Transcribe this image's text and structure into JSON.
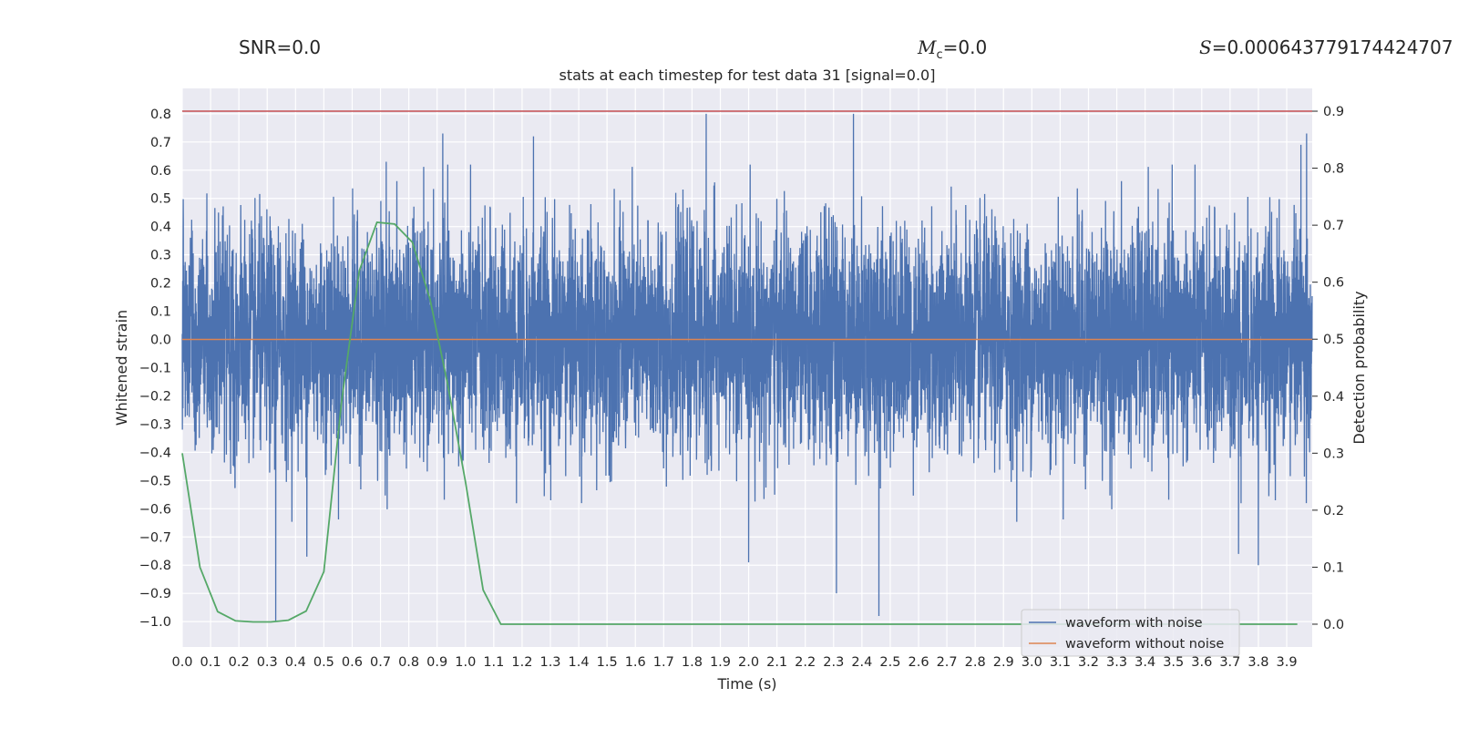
{
  "header": {
    "snr": "SNR=0.0",
    "mc_symbol": "M",
    "mc_sub": "c",
    "mc_value": "=0.0",
    "s_symbol": "S",
    "s_value": "=0.000643779174424707"
  },
  "chart_data": {
    "type": "line",
    "title": "stats at each timestep for test data 31 [signal=0.0]",
    "xlabel": "Time (s)",
    "ylabel": "Whitened strain",
    "ylabel_right": "Detection probability",
    "xlim": [
      0.0,
      3.99
    ],
    "ylim": [
      -1.09,
      0.89
    ],
    "ylim_right": [
      -0.04,
      0.94
    ],
    "x_ticks": [
      "0.0",
      "0.1",
      "0.2",
      "0.3",
      "0.4",
      "0.5",
      "0.6",
      "0.7",
      "0.8",
      "0.9",
      "1.0",
      "1.1",
      "1.2",
      "1.3",
      "1.4",
      "1.5",
      "1.6",
      "1.7",
      "1.8",
      "1.9",
      "2.0",
      "2.1",
      "2.2",
      "2.3",
      "2.4",
      "2.5",
      "2.6",
      "2.7",
      "2.8",
      "2.9",
      "3.0",
      "3.1",
      "3.2",
      "3.3",
      "3.4",
      "3.5",
      "3.6",
      "3.7",
      "3.8",
      "3.9"
    ],
    "y_ticks": [
      "0.8",
      "0.7",
      "0.6",
      "0.5",
      "0.4",
      "0.3",
      "0.2",
      "0.1",
      "0.0",
      "−0.1",
      "−0.2",
      "−0.3",
      "−0.4",
      "−0.5",
      "−0.6",
      "−0.7",
      "−0.8",
      "−0.9",
      "−1.0"
    ],
    "y_ticks_right": [
      "0.9",
      "0.8",
      "0.7",
      "0.6",
      "0.5",
      "0.4",
      "0.3",
      "0.2",
      "0.1",
      "0.0"
    ],
    "threshold": {
      "value": 0.9,
      "axis": "right",
      "color": "#c44e52"
    },
    "series": [
      {
        "name": "waveform with noise",
        "color": "#4c72b0",
        "axis": "left",
        "kind": "noise",
        "sample_rate": 2048,
        "duration": 4.0,
        "typical_amplitude": 0.2,
        "spikes": [
          {
            "x": 0.33,
            "y": -1.0
          },
          {
            "x": 0.92,
            "y": 0.73
          },
          {
            "x": 1.24,
            "y": 0.72
          },
          {
            "x": 1.85,
            "y": 0.8
          },
          {
            "x": 2.37,
            "y": 0.8
          },
          {
            "x": 2.31,
            "y": -0.9
          },
          {
            "x": 2.46,
            "y": -0.98
          },
          {
            "x": 3.97,
            "y": 0.73
          },
          {
            "x": 3.95,
            "y": 0.69
          },
          {
            "x": 0.72,
            "y": 0.63
          },
          {
            "x": 0.44,
            "y": -0.77
          },
          {
            "x": 2.0,
            "y": -0.79
          },
          {
            "x": 3.8,
            "y": -0.8
          },
          {
            "x": 3.73,
            "y": -0.76
          }
        ]
      },
      {
        "name": "waveform without noise",
        "color": "#dd8452",
        "axis": "left",
        "x": [
          0.0,
          3.99
        ],
        "y": [
          0.0,
          0.0
        ]
      },
      {
        "name": "detection probability",
        "color": "#55a868",
        "axis": "right",
        "x": [
          0.0,
          0.0625,
          0.125,
          0.1875,
          0.25,
          0.3125,
          0.375,
          0.4375,
          0.5,
          0.5625,
          0.625,
          0.6875,
          0.75,
          0.8125,
          0.875,
          0.9375,
          1.0,
          1.0625,
          1.125,
          1.1875,
          1.25,
          3.0,
          3.9375
        ],
        "y": [
          0.3,
          0.1,
          0.022,
          0.006,
          0.004,
          0.004,
          0.007,
          0.023,
          0.092,
          0.39,
          0.62,
          0.705,
          0.702,
          0.67,
          0.57,
          0.42,
          0.25,
          0.06,
          0.0,
          0.0,
          0.0,
          0.0,
          0.0
        ]
      }
    ],
    "legend": {
      "location": "lower-right",
      "entries": [
        "waveform with noise",
        "waveform without noise"
      ]
    },
    "grid": true
  }
}
